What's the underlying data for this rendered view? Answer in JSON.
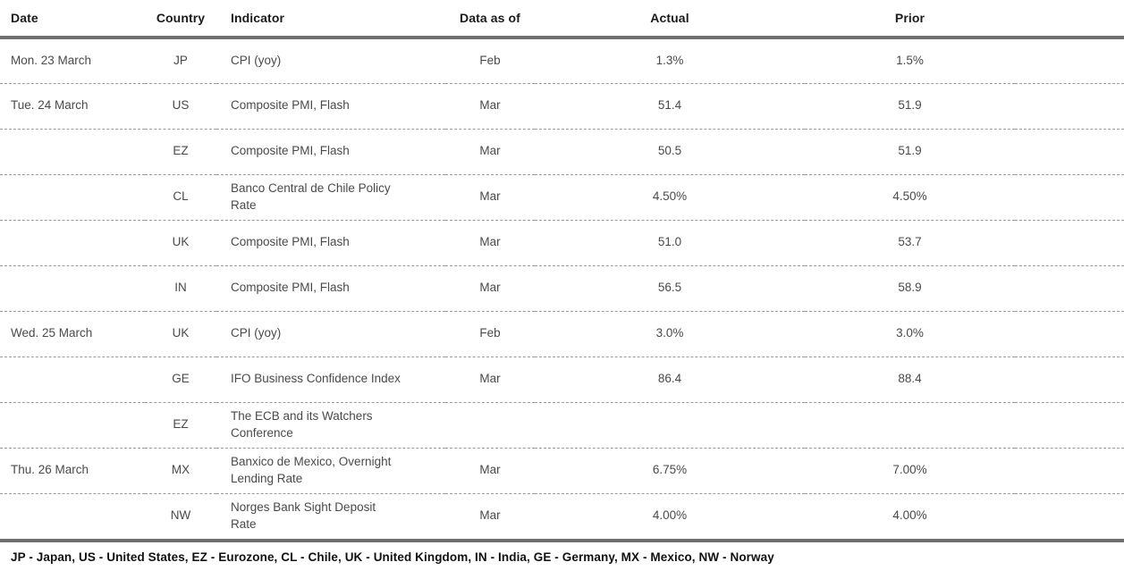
{
  "table": {
    "columns": {
      "date": "Date",
      "country": "Country",
      "indicator": "Indicator",
      "data_as_of": "Data as of",
      "actual": "Actual",
      "prior": "Prior"
    },
    "rows": [
      {
        "date": "Mon. 23 March",
        "country": "JP",
        "indicator": "CPI (yoy)",
        "data_as_of": "Feb",
        "actual": "1.3%",
        "prior": "1.5%"
      },
      {
        "date": "Tue. 24 March",
        "country": "US",
        "indicator": "Composite PMI, Flash",
        "data_as_of": "Mar",
        "actual": "51.4",
        "prior": "51.9"
      },
      {
        "date": "",
        "country": "EZ",
        "indicator": "Composite PMI, Flash",
        "data_as_of": "Mar",
        "actual": "50.5",
        "prior": "51.9"
      },
      {
        "date": "",
        "country": "CL",
        "indicator": "Banco Central de Chile Policy\nRate",
        "data_as_of": "Mar",
        "actual": "4.50%",
        "prior": "4.50%"
      },
      {
        "date": "",
        "country": "UK",
        "indicator": "Composite PMI, Flash",
        "data_as_of": "Mar",
        "actual": "51.0",
        "prior": "53.7"
      },
      {
        "date": "",
        "country": "IN",
        "indicator": "Composite PMI, Flash",
        "data_as_of": "Mar",
        "actual": "56.5",
        "prior": "58.9"
      },
      {
        "date": "Wed. 25 March",
        "country": "UK",
        "indicator": "CPI (yoy)",
        "data_as_of": "Feb",
        "actual": "3.0%",
        "prior": "3.0%"
      },
      {
        "date": "",
        "country": "GE",
        "indicator": "IFO Business Confidence Index",
        "data_as_of": "Mar",
        "actual": "86.4",
        "prior": "88.4"
      },
      {
        "date": "",
        "country": "EZ",
        "indicator": "The ECB and its Watchers\nConference",
        "data_as_of": "",
        "actual": "",
        "prior": ""
      },
      {
        "date": "Thu. 26 March",
        "country": "MX",
        "indicator": "Banxico de Mexico, Overnight\nLending Rate",
        "data_as_of": "Mar",
        "actual": "6.75%",
        "prior": "7.00%"
      },
      {
        "date": "",
        "country": "NW",
        "indicator": "Norges Bank Sight Deposit\nRate",
        "data_as_of": "Mar",
        "actual": "4.00%",
        "prior": "4.00%"
      }
    ],
    "footnote": "JP - Japan, US - United States, EZ - Eurozone, CL - Chile, UK - United Kingdom, IN - India, GE - Germany, MX - Mexico, NW - Norway"
  },
  "colors": {
    "rule_thick": "#6f6f6f",
    "rule_dashed": "#9b9b9b",
    "header_text": "#1b1b1b",
    "body_text": "#4a4a4a",
    "footnote_text": "#111111",
    "background": "#ffffff"
  }
}
